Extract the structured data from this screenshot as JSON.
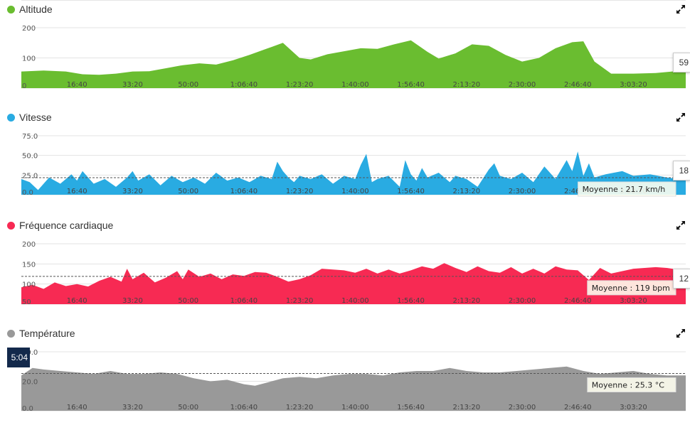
{
  "icons": {
    "expand": "expand-arrows-icon"
  },
  "cursor": {
    "time": "5:04"
  },
  "chart_data": [
    {
      "key": "altitude",
      "type": "area",
      "title": "Altitude",
      "color": "#6abd30",
      "x_unit": "seconds",
      "xlim": [
        0,
        11940
      ],
      "ylim": [
        0,
        200
      ],
      "y_ticks": [
        0,
        100,
        200
      ],
      "y_tick_labels": [
        "0",
        "100",
        "200"
      ],
      "x_ticks": [
        1000,
        2000,
        3000,
        4000,
        5000,
        6000,
        7000,
        8000,
        9000,
        10000,
        11000
      ],
      "x_tick_labels": [
        "16:40",
        "33:20",
        "50:00",
        "1:06:40",
        "1:23:20",
        "1:40:00",
        "1:56:40",
        "2:13:20",
        "2:30:00",
        "2:46:40",
        "3:03:20"
      ],
      "current_value": "59",
      "average": null,
      "x": [
        0,
        400,
        800,
        1100,
        1400,
        1700,
        2000,
        2300,
        2600,
        2900,
        3200,
        3500,
        3800,
        4100,
        4400,
        4700,
        5000,
        5200,
        5500,
        5800,
        6100,
        6400,
        6700,
        7000,
        7300,
        7500,
        7800,
        8100,
        8400,
        8700,
        9000,
        9300,
        9600,
        9900,
        10100,
        10300,
        10600,
        11000,
        11400,
        11700,
        11940
      ],
      "y": [
        55,
        58,
        55,
        46,
        44,
        48,
        55,
        56,
        66,
        76,
        82,
        78,
        92,
        110,
        130,
        150,
        100,
        95,
        112,
        122,
        132,
        130,
        145,
        158,
        120,
        98,
        115,
        145,
        140,
        110,
        88,
        100,
        132,
        152,
        155,
        88,
        48,
        48,
        50,
        55,
        54
      ]
    },
    {
      "key": "speed",
      "type": "area",
      "title": "Vitesse",
      "color": "#29abe2",
      "x_unit": "seconds",
      "xlim": [
        0,
        11940
      ],
      "ylim": [
        0,
        75
      ],
      "y_ticks": [
        0,
        25,
        50,
        75
      ],
      "y_tick_labels": [
        "0.0",
        "25.0",
        "50.0",
        "75.0"
      ],
      "x_ticks": [
        1000,
        2000,
        3000,
        4000,
        5000,
        6000,
        7000,
        8000,
        9000,
        10000,
        11000
      ],
      "x_tick_labels": [
        "16:40",
        "33:20",
        "50:00",
        "1:06:40",
        "1:23:20",
        "1:40:00",
        "1:56:40",
        "2:13:20",
        "2:30:00",
        "2:46:40",
        "3:03:20"
      ],
      "current_value": "18",
      "average": {
        "value": 21.7,
        "label": "Moyenne : 21.7 km/h"
      },
      "x": [
        0,
        150,
        300,
        500,
        700,
        900,
        1000,
        1100,
        1300,
        1500,
        1700,
        1900,
        2000,
        2100,
        2300,
        2500,
        2700,
        2900,
        3100,
        3300,
        3500,
        3700,
        3900,
        4100,
        4300,
        4500,
        4600,
        4700,
        4800,
        4900,
        5000,
        5200,
        5400,
        5600,
        5800,
        6000,
        6100,
        6200,
        6300,
        6400,
        6600,
        6800,
        6900,
        7000,
        7100,
        7200,
        7300,
        7500,
        7700,
        7800,
        8000,
        8200,
        8400,
        8500,
        8600,
        8800,
        9000,
        9200,
        9400,
        9600,
        9800,
        9900,
        10000,
        10100,
        10200,
        10300,
        10500,
        10800,
        11000,
        11300,
        11600,
        11800,
        11940
      ],
      "y": [
        20,
        16,
        6,
        22,
        14,
        26,
        18,
        30,
        14,
        20,
        10,
        22,
        30,
        18,
        26,
        12,
        24,
        16,
        22,
        14,
        28,
        18,
        22,
        16,
        24,
        20,
        42,
        30,
        22,
        16,
        24,
        20,
        26,
        14,
        24,
        20,
        38,
        52,
        16,
        20,
        24,
        10,
        44,
        26,
        18,
        34,
        22,
        28,
        16,
        24,
        20,
        10,
        32,
        40,
        24,
        20,
        28,
        16,
        36,
        20,
        44,
        30,
        55,
        24,
        40,
        22,
        26,
        30,
        24,
        26,
        22,
        20,
        18
      ]
    },
    {
      "key": "heart_rate",
      "type": "area",
      "title": "Fréquence cardiaque",
      "color": "#f72a53",
      "x_unit": "seconds",
      "xlim": [
        0,
        11940
      ],
      "ylim": [
        50,
        200
      ],
      "y_ticks": [
        50,
        100,
        150,
        200
      ],
      "y_tick_labels": [
        "50",
        "100",
        "150",
        "200"
      ],
      "x_ticks": [
        1000,
        2000,
        3000,
        4000,
        5000,
        6000,
        7000,
        8000,
        9000,
        10000,
        11000
      ],
      "x_tick_labels": [
        "16:40",
        "33:20",
        "50:00",
        "1:06:40",
        "1:23:20",
        "1:40:00",
        "1:56:40",
        "2:13:20",
        "2:30:00",
        "2:46:40",
        "3:03:20"
      ],
      "current_value": "12",
      "average": {
        "value": 119,
        "label": "Moyenne : 119 bpm"
      },
      "x": [
        0,
        200,
        400,
        600,
        800,
        1000,
        1200,
        1400,
        1600,
        1800,
        1900,
        2000,
        2200,
        2400,
        2600,
        2800,
        2900,
        3000,
        3200,
        3400,
        3600,
        3800,
        4000,
        4200,
        4400,
        4600,
        4800,
        5000,
        5200,
        5400,
        5600,
        5800,
        6000,
        6200,
        6400,
        6600,
        6800,
        7000,
        7200,
        7400,
        7600,
        7800,
        8000,
        8200,
        8400,
        8600,
        8800,
        9000,
        9200,
        9400,
        9600,
        9800,
        10000,
        10200,
        10400,
        10600,
        10800,
        11000,
        11200,
        11400,
        11600,
        11800,
        11940
      ],
      "y": [
        92,
        98,
        88,
        104,
        95,
        100,
        94,
        108,
        118,
        106,
        138,
        112,
        128,
        104,
        116,
        132,
        112,
        136,
        118,
        126,
        112,
        124,
        120,
        130,
        128,
        118,
        106,
        112,
        122,
        138,
        136,
        134,
        128,
        138,
        126,
        136,
        126,
        134,
        144,
        138,
        152,
        140,
        130,
        144,
        132,
        128,
        142,
        126,
        138,
        126,
        144,
        136,
        134,
        110,
        140,
        126,
        132,
        138,
        140,
        142,
        140,
        136,
        134
      ]
    },
    {
      "key": "temperature",
      "type": "area",
      "title": "Température",
      "color": "#999999",
      "x_unit": "seconds",
      "xlim": [
        0,
        11940
      ],
      "ylim": [
        0,
        40
      ],
      "y_ticks": [
        0,
        20,
        40
      ],
      "y_tick_labels": [
        "0.0",
        "20.0",
        "40.0"
      ],
      "x_ticks": [
        1000,
        2000,
        3000,
        4000,
        5000,
        6000,
        7000,
        8000,
        9000,
        10000,
        11000
      ],
      "x_tick_labels": [
        "16:40",
        "33:20",
        "50:00",
        "1:06:40",
        "1:23:20",
        "1:40:00",
        "1:56:40",
        "2:13:20",
        "2:30:00",
        "2:46:40",
        "3:03:20"
      ],
      "current_value": null,
      "average": {
        "value": 25.3,
        "label": "Moyenne : 25.3 °C"
      },
      "x": [
        0,
        200,
        400,
        700,
        1000,
        1300,
        1600,
        1900,
        2200,
        2500,
        2800,
        3100,
        3400,
        3700,
        4000,
        4200,
        4400,
        4700,
        5000,
        5300,
        5600,
        5900,
        6200,
        6500,
        6800,
        7100,
        7400,
        7700,
        8000,
        8300,
        8600,
        8900,
        9200,
        9500,
        9800,
        10100,
        10400,
        10700,
        11000,
        11300,
        11600,
        11940
      ],
      "y": [
        24,
        29,
        28,
        27,
        26,
        25,
        27,
        25,
        25,
        26,
        25,
        22,
        20,
        21,
        18,
        17,
        19,
        22,
        23,
        22,
        24,
        25,
        25,
        24,
        26,
        27,
        27,
        29,
        27,
        26,
        26,
        27,
        28,
        29,
        30,
        27,
        25,
        26,
        27,
        25,
        24,
        24
      ]
    }
  ]
}
